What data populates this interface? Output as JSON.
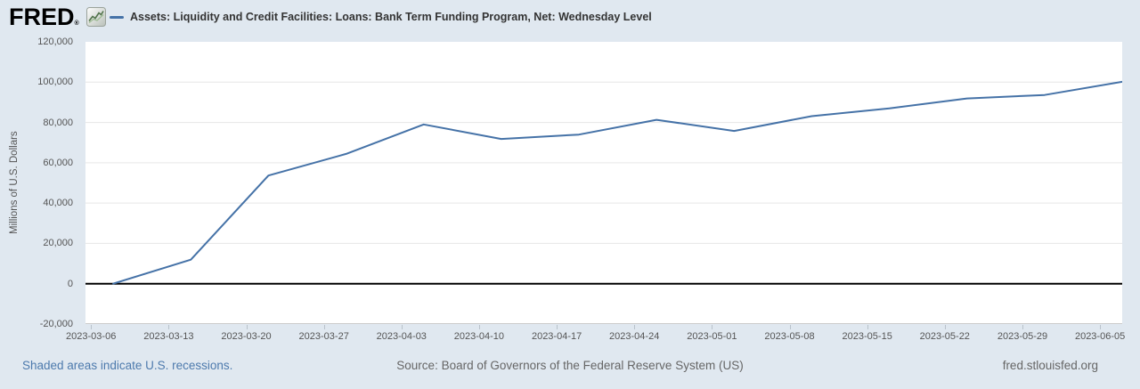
{
  "header": {
    "logo_text": "FRED",
    "logo_registered": "®",
    "legend_label": "Assets: Liquidity and Credit Facilities: Loans: Bank Term Funding Program, Net: Wednesday Level"
  },
  "footer": {
    "recessions_note": "Shaded areas indicate U.S. recessions.",
    "source": "Source: Board of Governors of the Federal Reserve System (US)",
    "site": "fred.stlouisfed.org"
  },
  "chart_data": {
    "type": "line",
    "title": "Assets: Liquidity and Credit Facilities: Loans: Bank Term Funding Program, Net: Wednesday Level",
    "xlabel": "",
    "ylabel": "Millions of U.S. Dollars",
    "x": [
      "2023-03-08",
      "2023-03-15",
      "2023-03-22",
      "2023-03-29",
      "2023-04-05",
      "2023-04-12",
      "2023-04-19",
      "2023-04-26",
      "2023-05-03",
      "2023-05-10",
      "2023-05-17",
      "2023-05-24",
      "2023-05-31",
      "2023-06-07"
    ],
    "values": [
      0,
      11943,
      53669,
      64403,
      79021,
      71837,
      73982,
      81327,
      75778,
      83101,
      87006,
      91907,
      93615,
      100161
    ],
    "x_tick_labels": [
      "2023-03-06",
      "2023-03-13",
      "2023-03-20",
      "2023-03-27",
      "2023-04-03",
      "2023-04-10",
      "2023-04-17",
      "2023-04-24",
      "2023-05-01",
      "2023-05-08",
      "2023-05-15",
      "2023-05-22",
      "2023-05-29",
      "2023-06-05"
    ],
    "y_ticks": [
      -20000,
      0,
      20000,
      40000,
      60000,
      80000,
      100000,
      120000
    ],
    "grid_values": [
      20000,
      40000,
      60000,
      80000,
      100000
    ],
    "ylim": [
      -20000,
      120000
    ],
    "xlim": [
      "2023-03-05T12:00:00Z",
      "2023-06-07T00:00:00Z"
    ],
    "grid": "horizontal",
    "legend_position": "top-left",
    "zero_line": true,
    "colors": {
      "line": "#4572a7",
      "grid": "#e6e6e6",
      "zero_line": "#000000",
      "plot_bg": "#ffffff",
      "page_bg": "#e0e8f0",
      "axis_text": "#555555",
      "link_blue": "#4d7aad",
      "source_text": "#666666"
    }
  }
}
